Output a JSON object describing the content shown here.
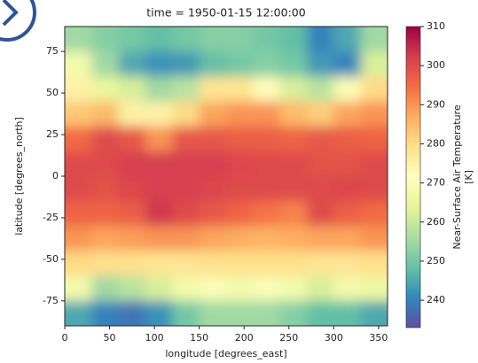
{
  "chart_data": {
    "type": "heatmap",
    "title": "time = 1950-01-15 12:00:00",
    "x_label": "longitude [degrees_east]",
    "y_label": "latitude [degrees_north]",
    "colorbar_label": "Near-Surface Air Temperature",
    "colorbar_units": "[K]",
    "x": [
      15,
      45,
      75,
      105,
      135,
      165,
      195,
      225,
      255,
      285,
      315,
      345
    ],
    "y": [
      82.5,
      67.5,
      52.5,
      37.5,
      22.5,
      7.5,
      -7.5,
      -22.5,
      -37.5,
      -52.5,
      -67.5,
      -82.5
    ],
    "values": [
      [
        255,
        252,
        250,
        248,
        250,
        252,
        252,
        250,
        248,
        240,
        245,
        255
      ],
      [
        268,
        255,
        245,
        242,
        243,
        248,
        250,
        252,
        250,
        243,
        240,
        262
      ],
      [
        275,
        265,
        262,
        255,
        258,
        278,
        278,
        272,
        262,
        258,
        270,
        280
      ],
      [
        283,
        285,
        275,
        275,
        280,
        288,
        290,
        290,
        285,
        282,
        288,
        290
      ],
      [
        295,
        300,
        298,
        290,
        298,
        298,
        297,
        297,
        296,
        298,
        297,
        296
      ],
      [
        300,
        300,
        302,
        302,
        302,
        302,
        301,
        300,
        300,
        299,
        299,
        300
      ],
      [
        300,
        299,
        301,
        302,
        302,
        301,
        300,
        300,
        300,
        300,
        301,
        300
      ],
      [
        296,
        296,
        297,
        303,
        300,
        298,
        296,
        294,
        292,
        300,
        297,
        295
      ],
      [
        290,
        288,
        289,
        290,
        290,
        288,
        287,
        286,
        287,
        288,
        288,
        290
      ],
      [
        280,
        279,
        279,
        278,
        278,
        279,
        279,
        279,
        279,
        278,
        278,
        279
      ],
      [
        268,
        255,
        258,
        262,
        268,
        270,
        268,
        270,
        268,
        262,
        268,
        266
      ],
      [
        245,
        240,
        238,
        242,
        250,
        255,
        255,
        255,
        252,
        248,
        248,
        245
      ]
    ],
    "xlim": [
      0,
      360
    ],
    "ylim": [
      -90,
      90
    ],
    "xticks": [
      0,
      50,
      100,
      150,
      200,
      250,
      300,
      350
    ],
    "yticks": [
      75,
      50,
      25,
      0,
      -25,
      -50,
      -75
    ],
    "clim": [
      233,
      310
    ],
    "cticks": [
      240,
      250,
      260,
      270,
      280,
      290,
      300,
      310
    ],
    "colorscale": [
      "#5e4fa2",
      "#3288bd",
      "#66c2a5",
      "#abdda4",
      "#e6f598",
      "#ffffbf",
      "#fee08b",
      "#fdae61",
      "#f46d43",
      "#d53e4f",
      "#9e0142"
    ]
  }
}
